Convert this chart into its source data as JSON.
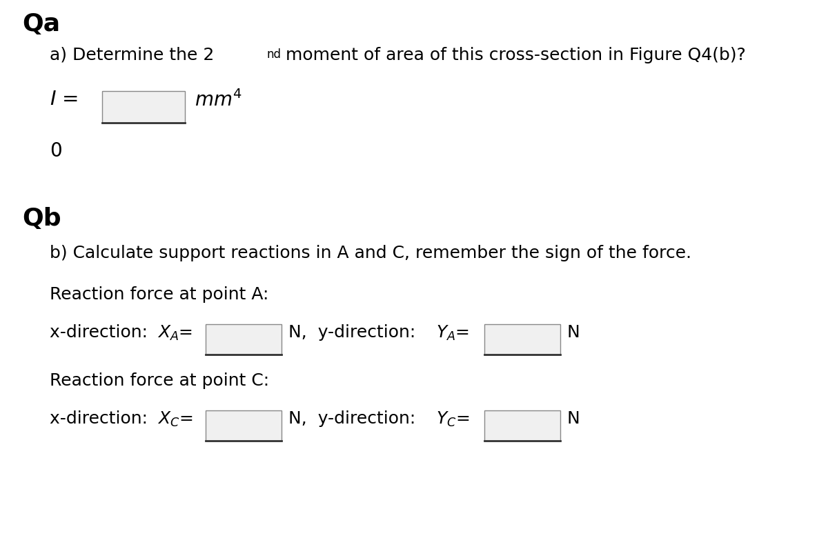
{
  "bg_color": "#ffffff",
  "qa_label": "Qa",
  "qb_label": "Qb",
  "qa_line_normal": "a) Determine the 2",
  "qa_superscript": "nd",
  "qa_line_rest": " moment of area of this cross-section in Figure Q4(b)?",
  "qb_line": "b) Calculate support reactions in A and C, remember the sign of the force.",
  "reaction_a_label": "Reaction force at point A:",
  "reaction_c_label": "Reaction force at point C:",
  "n_label": "N",
  "box_fill": "#f0f0f0",
  "box_edge_color": "#888888",
  "box_bottom_color": "#333333",
  "font_size_heading": 26,
  "font_size_body": 18,
  "font_size_super": 12,
  "font_size_math": 20
}
